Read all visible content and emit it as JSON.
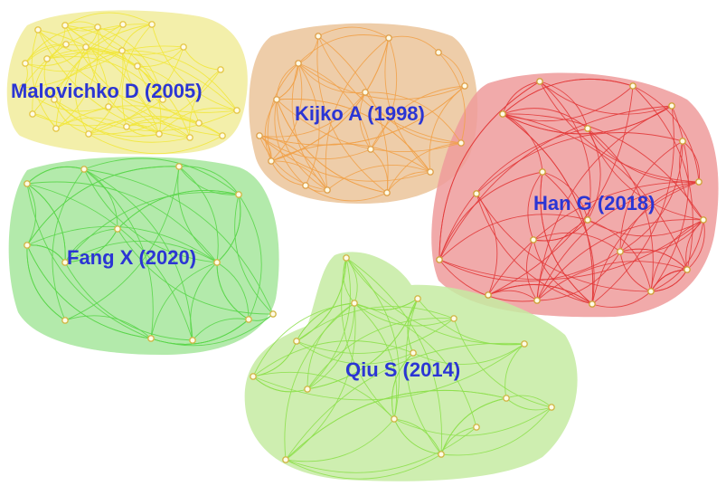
{
  "diagram": {
    "type": "co-citation cluster network",
    "clusters": [
      {
        "id": "malovichko",
        "label": "Malovichko D (2005)",
        "fill": "#f1ec9b",
        "edge_color": "#f2e73a",
        "node_stroke": "#e6c84a"
      },
      {
        "id": "kijko",
        "label": "Kijko A (1998)",
        "fill": "#ebc49a",
        "edge_color": "#f1a24a",
        "node_stroke": "#e0a24e"
      },
      {
        "id": "han",
        "label": "Han G (2018)",
        "fill": "#ee9b9b",
        "edge_color": "#e23a3a",
        "node_stroke": "#d0a23c"
      },
      {
        "id": "fang",
        "label": "Fang X (2020)",
        "fill": "#a6e69c",
        "edge_color": "#5ad64a",
        "node_stroke": "#d2b84a"
      },
      {
        "id": "qiu",
        "label": "Qiu S (2014)",
        "fill": "#c6eba2",
        "edge_color": "#8ee04e",
        "node_stroke": "#d0b84a"
      }
    ],
    "node_fill": "#fffbe6"
  }
}
